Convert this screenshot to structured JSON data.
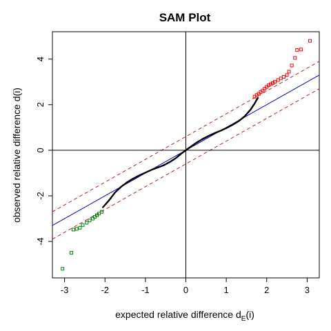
{
  "chart_data": {
    "type": "scatter",
    "title": "SAM Plot",
    "xlabel": {
      "main": "expected relative difference d",
      "sub": "E",
      "suffix": "(i)"
    },
    "ylabel": "observed relative difference d(i)",
    "xlim": [
      -3.3,
      3.3
    ],
    "ylim": [
      -5.6,
      5.2
    ],
    "xticks": [
      -3,
      -2,
      -1,
      0,
      1,
      2,
      3
    ],
    "xtick_labels": [
      "-3",
      "-2",
      "-1",
      "0",
      "1",
      "2",
      "3"
    ],
    "yticks": [
      -4,
      -2,
      0,
      2,
      4
    ],
    "ytick_labels": [
      "-4",
      "-2",
      "0",
      "2",
      "4"
    ],
    "grid": false,
    "reference_lines": [
      {
        "type": "identity",
        "slope": 1,
        "intercept": 0,
        "color": "#0000cc",
        "style": "solid"
      },
      {
        "type": "delta-upper",
        "slope": 1,
        "intercept": 0.6,
        "color": "#b22222",
        "style": "dashed"
      },
      {
        "type": "delta-lower",
        "slope": 1,
        "intercept": -0.6,
        "color": "#b22222",
        "style": "dashed"
      }
    ],
    "axes_at_zero": true,
    "curve": {
      "name": "non-significant genes",
      "color": "#000000",
      "points": [
        [
          -2.05,
          -2.5
        ],
        [
          -1.9,
          -2.2
        ],
        [
          -1.75,
          -1.85
        ],
        [
          -1.6,
          -1.6
        ],
        [
          -1.45,
          -1.4
        ],
        [
          -1.3,
          -1.24
        ],
        [
          -1.15,
          -1.1
        ],
        [
          -1.0,
          -0.98
        ],
        [
          -0.85,
          -0.86
        ],
        [
          -0.7,
          -0.76
        ],
        [
          -0.55,
          -0.66
        ],
        [
          -0.4,
          -0.52
        ],
        [
          -0.25,
          -0.35
        ],
        [
          -0.1,
          -0.13
        ],
        [
          0.0,
          0.0
        ],
        [
          0.1,
          0.13
        ],
        [
          0.25,
          0.32
        ],
        [
          0.4,
          0.48
        ],
        [
          0.55,
          0.62
        ],
        [
          0.7,
          0.74
        ],
        [
          0.85,
          0.85
        ],
        [
          1.0,
          0.97
        ],
        [
          1.15,
          1.11
        ],
        [
          1.3,
          1.27
        ],
        [
          1.45,
          1.48
        ],
        [
          1.6,
          1.78
        ],
        [
          1.7,
          2.05
        ],
        [
          1.78,
          2.3
        ]
      ]
    },
    "series": [
      {
        "name": "significant up-regulated",
        "color": "#ff0000",
        "points": [
          [
            1.7,
            2.35
          ],
          [
            1.75,
            2.42
          ],
          [
            1.8,
            2.48
          ],
          [
            1.85,
            2.55
          ],
          [
            1.9,
            2.62
          ],
          [
            1.95,
            2.7
          ],
          [
            2.0,
            2.78
          ],
          [
            2.05,
            2.85
          ],
          [
            2.1,
            2.9
          ],
          [
            2.15,
            2.95
          ],
          [
            2.2,
            3.0
          ],
          [
            2.28,
            3.08
          ],
          [
            2.35,
            3.15
          ],
          [
            2.42,
            3.22
          ],
          [
            2.5,
            3.3
          ],
          [
            2.55,
            3.45
          ],
          [
            2.62,
            3.72
          ],
          [
            2.7,
            4.05
          ],
          [
            2.75,
            4.4
          ],
          [
            2.85,
            4.42
          ],
          [
            3.07,
            4.8
          ]
        ]
      },
      {
        "name": "significant down-regulated",
        "color": "#008000",
        "points": [
          [
            -2.08,
            -2.7
          ],
          [
            -2.15,
            -2.78
          ],
          [
            -2.2,
            -2.85
          ],
          [
            -2.25,
            -2.92
          ],
          [
            -2.3,
            -3.0
          ],
          [
            -2.38,
            -3.08
          ],
          [
            -2.45,
            -3.18
          ],
          [
            -2.55,
            -3.28
          ],
          [
            -2.62,
            -3.4
          ],
          [
            -2.7,
            -3.45
          ],
          [
            -2.78,
            -3.48
          ],
          [
            -2.83,
            -4.5
          ],
          [
            -3.05,
            -5.2
          ]
        ]
      }
    ]
  }
}
